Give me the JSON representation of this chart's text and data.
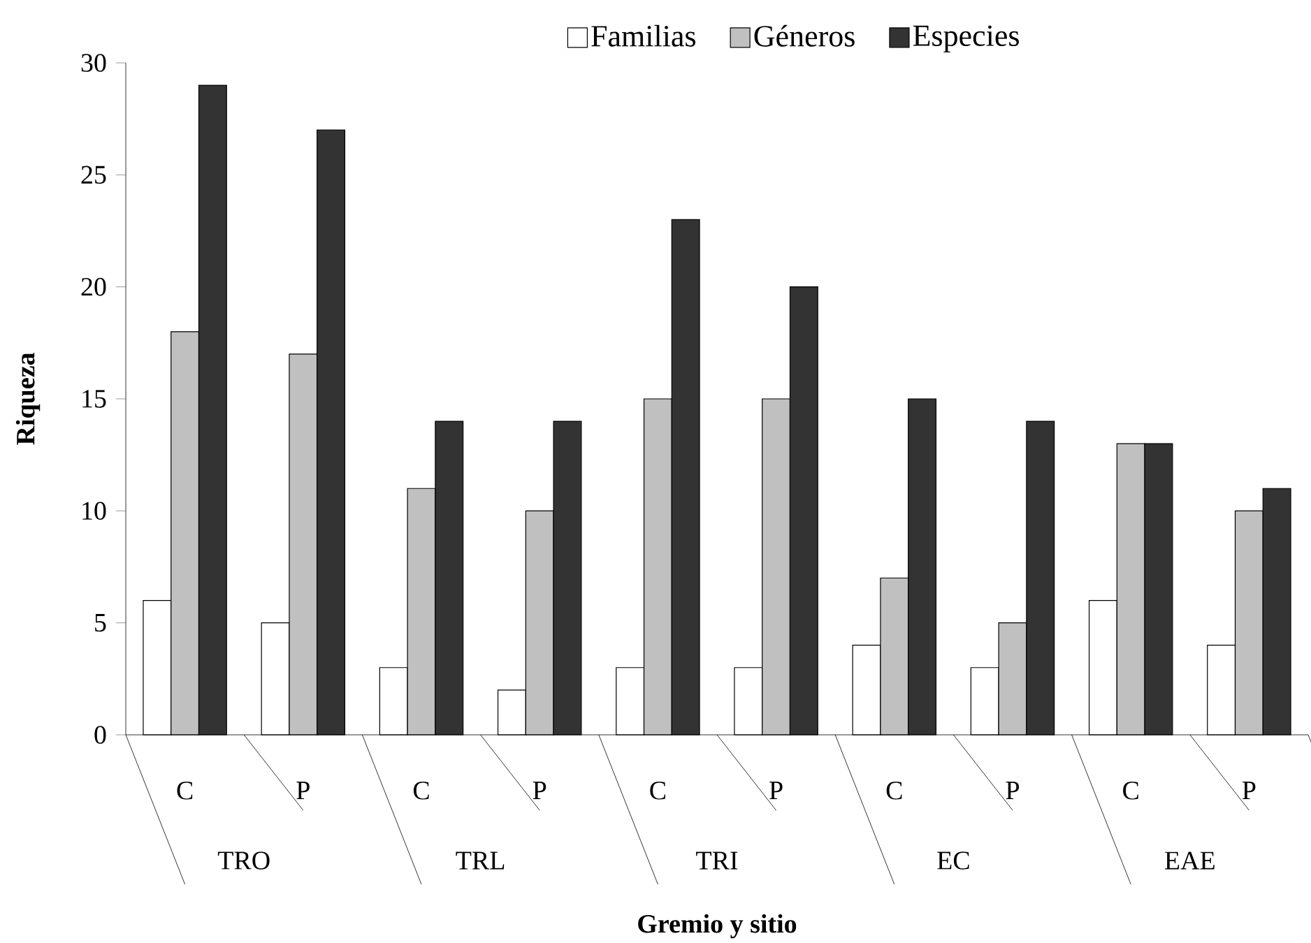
{
  "chart_data": {
    "type": "bar",
    "xlabel": "Gremio y sitio",
    "ylabel": "Riqueza",
    "categories": [
      "C",
      "P",
      "C",
      "P",
      "C",
      "P",
      "C",
      "P",
      "C",
      "P"
    ],
    "annotations": [
      "TRO",
      "TRL",
      "TRI",
      "EC",
      "EAE"
    ],
    "series": [
      {
        "name": "Familias",
        "color": "#ffffff",
        "values": [
          6,
          5,
          3,
          2,
          3,
          3,
          4,
          3,
          6,
          4
        ]
      },
      {
        "name": "Géneros",
        "color": "#c0c0c0",
        "values": [
          18,
          17,
          11,
          10,
          15,
          15,
          7,
          5,
          13,
          10
        ]
      },
      {
        "name": "Especies",
        "color": "#333333",
        "values": [
          29,
          27,
          14,
          14,
          23,
          20,
          15,
          14,
          13,
          11
        ]
      }
    ],
    "ylim": [
      0,
      30
    ],
    "yticks": [
      0,
      5,
      10,
      15,
      20,
      25,
      30
    ],
    "legend": "top",
    "grid": false
  }
}
